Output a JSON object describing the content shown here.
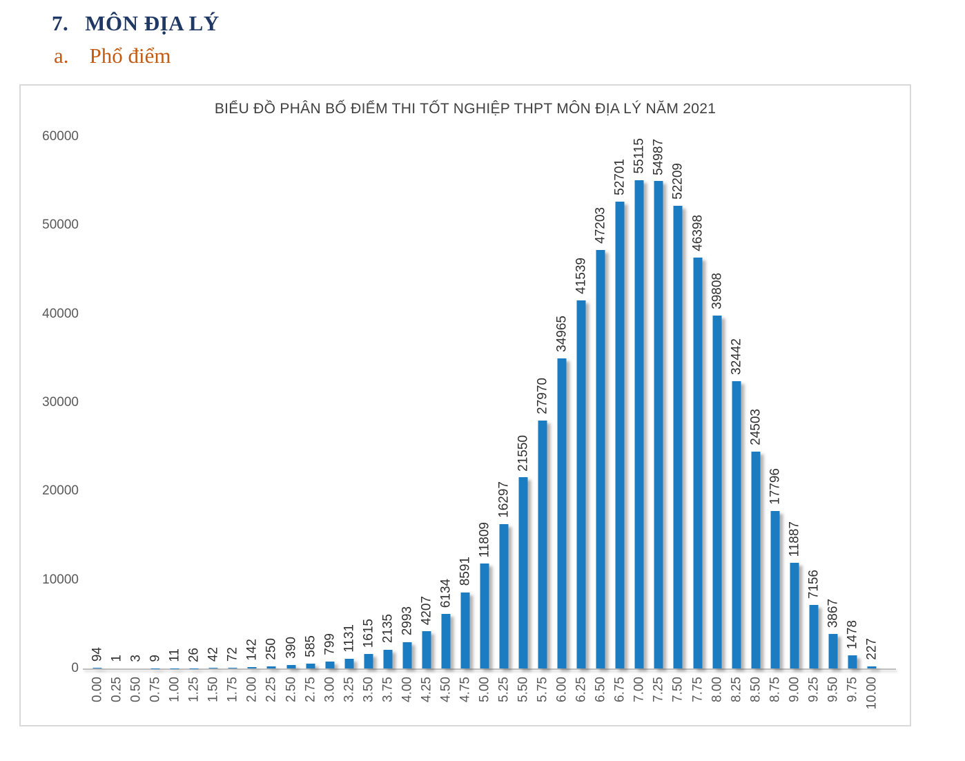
{
  "page": {
    "heading": {
      "number": "7.",
      "title": "MÔN ĐỊA LÝ"
    },
    "subheading": {
      "letter": "a.",
      "title": "Phổ điểm"
    }
  },
  "chart_data": {
    "type": "bar",
    "title": "BIỂU ĐỒ PHÂN BỐ ĐIỂM THI TỐT NGHIỆP THPT MÔN ĐỊA LÝ NĂM 2021",
    "xlabel": "",
    "ylabel": "",
    "categories": [
      "0.00",
      "0.25",
      "0.50",
      "0.75",
      "1.00",
      "1.25",
      "1.50",
      "1.75",
      "2.00",
      "2.25",
      "2.50",
      "2.75",
      "3.00",
      "3.25",
      "3.50",
      "3.75",
      "4.00",
      "4.25",
      "4.50",
      "4.75",
      "5.00",
      "5.25",
      "5.50",
      "5.75",
      "6.00",
      "6.25",
      "6.50",
      "6.75",
      "7.00",
      "7.25",
      "7.50",
      "7.75",
      "8.00",
      "8.25",
      "8.50",
      "8.75",
      "9.00",
      "9.25",
      "9.50",
      "9.75",
      "10.00"
    ],
    "values": [
      94,
      1,
      3,
      9,
      11,
      26,
      42,
      72,
      142,
      250,
      390,
      585,
      799,
      1131,
      1615,
      2135,
      2993,
      4207,
      6134,
      8591,
      11809,
      16297,
      21550,
      27970,
      34965,
      41539,
      47203,
      52701,
      55115,
      54987,
      52209,
      46398,
      39808,
      32442,
      24503,
      17796,
      11887,
      7156,
      3867,
      1478,
      227
    ],
    "ylim": [
      0,
      60000
    ],
    "yticks": [
      0,
      10000,
      20000,
      30000,
      40000,
      50000,
      60000
    ],
    "grid": false,
    "legend": null,
    "data_labels": true,
    "label_rotation": 90
  },
  "colors": {
    "heading": "#1F3864",
    "subheading": "#C55A11",
    "chart_title": "#404040",
    "bar": "#1B7CC2",
    "axis_text": "#595959",
    "value_label": "#303030",
    "chart_border": "#D9D9D9",
    "axis_line": "#BFBFBF"
  }
}
